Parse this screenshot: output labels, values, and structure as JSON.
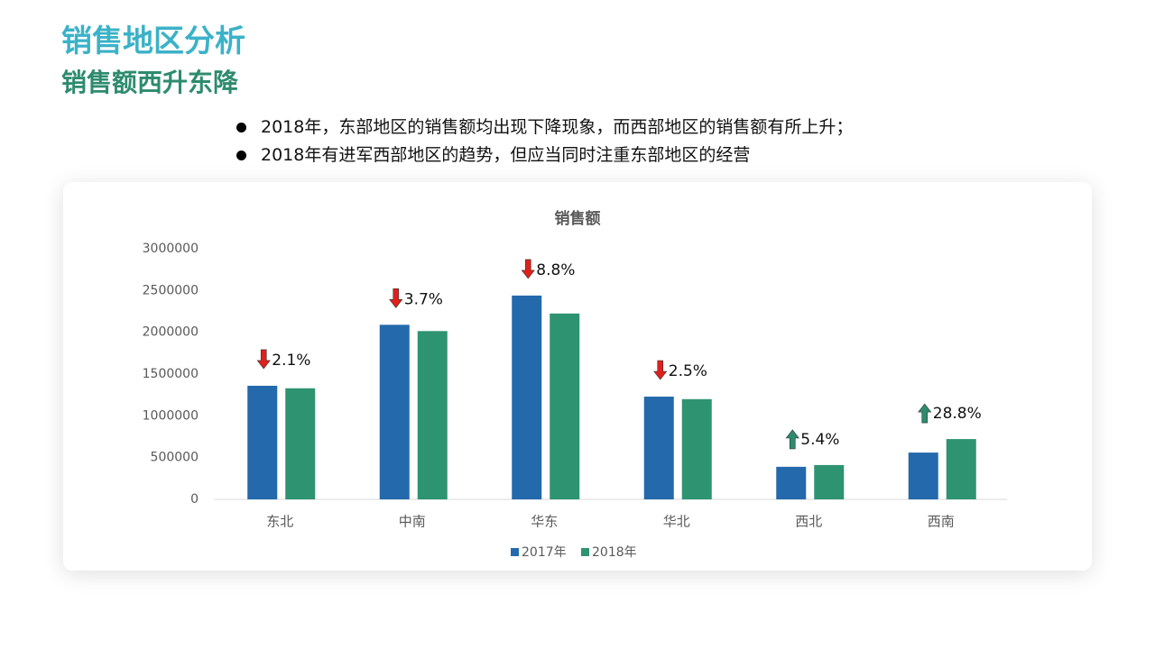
{
  "header": {
    "title": "销售地区分析",
    "subtitle": "销售额西升东降"
  },
  "bullets": [
    "2018年，东部地区的销售额均出现下降现象，而西部地区的销售额有所上升；",
    "2018年有进军西部地区的趋势，但应当同时注重东部地区的经营"
  ],
  "chart_data": {
    "type": "bar",
    "title": "销售额",
    "categories": [
      "东北",
      "中南",
      "华东",
      "华北",
      "西北",
      "西南"
    ],
    "series": [
      {
        "name": "2017年",
        "color": "#2369ac",
        "values": [
          1360000,
          2090000,
          2440000,
          1230000,
          390000,
          560000
        ]
      },
      {
        "name": "2018年",
        "color": "#2e9371",
        "values": [
          1330000,
          2015000,
          2225000,
          1200000,
          411000,
          722000
        ]
      }
    ],
    "ylim": [
      0,
      3000000
    ],
    "yticks": [
      0,
      500000,
      1000000,
      1500000,
      2000000,
      2500000,
      3000000
    ],
    "annotations": [
      {
        "text": "2.1%",
        "trend": "down"
      },
      {
        "text": "3.7%",
        "trend": "down"
      },
      {
        "text": "8.8%",
        "trend": "down"
      },
      {
        "text": "2.5%",
        "trend": "down"
      },
      {
        "text": "5.4%",
        "trend": "up"
      },
      {
        "text": "28.8%",
        "trend": "up"
      }
    ],
    "trend_colors": {
      "down": "#e0201b",
      "up": "#2e8b6e"
    },
    "legend": "bottom"
  }
}
